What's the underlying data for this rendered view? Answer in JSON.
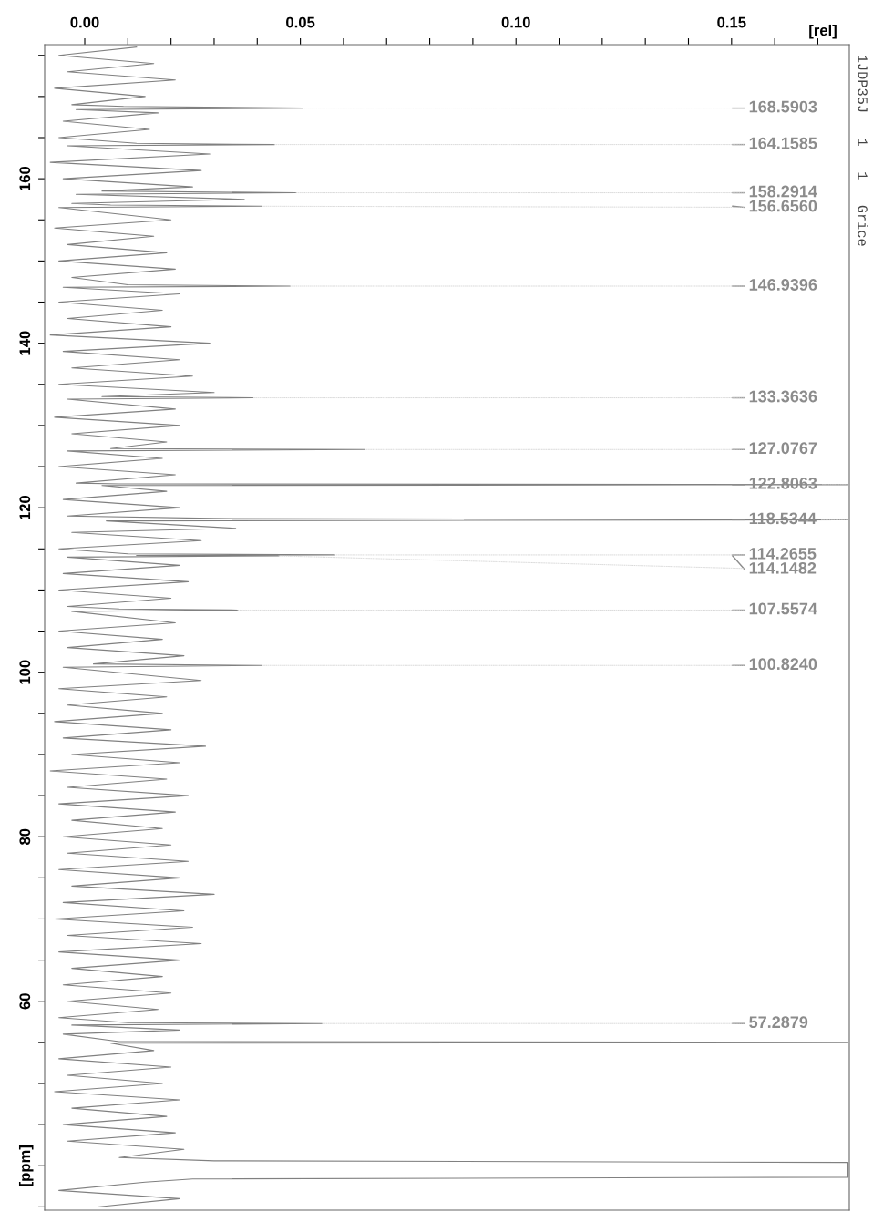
{
  "chart_data": {
    "type": "line",
    "xlabel": "[rel]",
    "xlim": [
      -0.0093,
      0.1773
    ],
    "xticks": [
      {
        "value": 0,
        "label": "0.00"
      },
      {
        "value": 0.01,
        "label": null
      },
      {
        "value": 0.02,
        "label": null
      },
      {
        "value": 0.03,
        "label": null
      },
      {
        "value": 0.04,
        "label": null
      },
      {
        "value": 0.05,
        "label": "0.05"
      },
      {
        "value": 0.06,
        "label": null
      },
      {
        "value": 0.07,
        "label": null
      },
      {
        "value": 0.08,
        "label": null
      },
      {
        "value": 0.09,
        "label": null
      },
      {
        "value": 0.1,
        "label": "0.10"
      },
      {
        "value": 0.11,
        "label": null
      },
      {
        "value": 0.12,
        "label": null
      },
      {
        "value": 0.13,
        "label": null
      },
      {
        "value": 0.14,
        "label": null
      },
      {
        "value": 0.15,
        "label": "0.15"
      },
      {
        "value": 0.16,
        "label": null
      },
      {
        "value": 0.17,
        "label": null
      }
    ],
    "ylim": [
      34.6,
      176.3
    ],
    "yticks": [
      {
        "value": 175,
        "label": null
      },
      {
        "value": 170,
        "label": null
      },
      {
        "value": 165,
        "label": null
      },
      160,
      {
        "value": 155,
        "label": null
      },
      {
        "value": 150,
        "label": null
      },
      {
        "value": 145,
        "label": null
      },
      140,
      {
        "value": 135,
        "label": null
      },
      {
        "value": 130,
        "label": null
      },
      {
        "value": 125,
        "label": null
      },
      120,
      {
        "value": 115,
        "label": null
      },
      {
        "value": 110,
        "label": null
      },
      {
        "value": 105,
        "label": null
      },
      100,
      {
        "value": 95,
        "label": null
      },
      {
        "value": 90,
        "label": null
      },
      {
        "value": 85,
        "label": null
      },
      80,
      {
        "value": 75,
        "label": null
      },
      {
        "value": 70,
        "label": null
      },
      {
        "value": 65,
        "label": null
      },
      60,
      {
        "value": 55,
        "label": null
      },
      {
        "value": 50,
        "label": null
      },
      {
        "value": 45,
        "label": null
      },
      {
        "value": 40,
        "label": "[ppm]"
      },
      {
        "value": 35,
        "label": null
      }
    ],
    "grid": false,
    "series": [
      {
        "color": "#808080",
        "x": [
          0.012,
          -0.006,
          0.016,
          -0.004,
          0.021,
          -0.007,
          0.014,
          -0.003,
          0.009,
          0.0507,
          -0.002,
          0.017,
          -0.005,
          0.015,
          -0.006,
          0.012,
          0.044,
          -0.004,
          0.029,
          -0.008,
          0.027,
          -0.005,
          0.025,
          0.004,
          0.049,
          -0.002,
          0.037,
          -0.003,
          0.006,
          0.041,
          -0.006,
          0.02,
          -0.007,
          0.016,
          -0.004,
          0.019,
          -0.006,
          0.021,
          -0.003,
          0.01,
          0.0476,
          -0.005,
          0.022,
          -0.006,
          0.018,
          -0.004,
          0.02,
          -0.008,
          0.029,
          -0.005,
          0.022,
          -0.003,
          0.025,
          -0.006,
          0.03,
          0.004,
          0.039,
          -0.004,
          0.021,
          -0.007,
          0.022,
          -0.003,
          0.019,
          0.006,
          0.065,
          -0.004,
          0.018,
          -0.006,
          0.021,
          -0.002,
          0.008,
          0.177,
          0.004,
          0.019,
          -0.005,
          0.022,
          -0.004,
          0.03,
          0.177,
          0.005,
          0.035,
          -0.003,
          0.027,
          -0.006,
          0.01,
          0.058,
          0.012,
          0.045,
          -0.004,
          0.022,
          -0.005,
          0.024,
          -0.006,
          0.02,
          -0.004,
          0.008,
          0.0355,
          -0.003,
          0.021,
          -0.006,
          0.018,
          -0.004,
          0.023,
          0.002,
          0.041,
          -0.005,
          0.027,
          -0.006,
          0.019,
          -0.004,
          0.018,
          -0.007,
          0.02,
          -0.005,
          0.028,
          -0.003,
          0.022,
          -0.008,
          0.019,
          -0.004,
          0.024,
          -0.006,
          0.021,
          -0.003,
          0.018,
          -0.005,
          0.02,
          -0.004,
          0.024,
          -0.006,
          0.022,
          -0.003,
          0.03,
          -0.005,
          0.023,
          -0.007,
          0.025,
          -0.004,
          0.027,
          -0.006,
          0.022,
          -0.003,
          0.018,
          -0.005,
          0.02,
          -0.004,
          0.017,
          -0.006,
          0.01,
          0.055,
          -0.003,
          0.022,
          -0.005,
          0.008,
          0.177,
          0.006,
          0.016,
          -0.006,
          0.02,
          -0.004,
          0.018,
          -0.007,
          0.022,
          -0.003,
          0.019,
          -0.005,
          0.021,
          -0.004,
          0.023,
          0.008,
          0.03,
          0.177,
          0.177,
          0.177,
          0.177,
          0.177,
          0.025,
          0.014,
          -0.006,
          0.022,
          0.003
        ],
        "values": [
          176,
          175,
          174,
          173,
          172,
          171,
          170,
          169,
          168.8,
          168.5903,
          168.4,
          168,
          167,
          166,
          165,
          164.3,
          164.1585,
          164.0,
          163,
          162,
          161,
          160,
          159,
          158.5,
          158.2914,
          158.1,
          157.5,
          157,
          156.8,
          156.656,
          156.5,
          155,
          154,
          153,
          152,
          151,
          150,
          149,
          148,
          147.1,
          146.9396,
          146.8,
          146,
          145,
          144,
          143,
          142,
          141,
          140,
          139,
          138,
          137,
          136,
          135,
          134,
          133.5,
          133.3636,
          133.2,
          132,
          131,
          130,
          129,
          128,
          127.2,
          127.0767,
          126.9,
          126,
          125,
          124,
          123,
          122.9,
          122.8063,
          122.7,
          122,
          121,
          120,
          119,
          118.7,
          118.5344,
          118.4,
          117.5,
          117,
          116,
          115,
          114.4,
          114.2655,
          114.2,
          114.1482,
          114.0,
          113,
          112,
          111,
          110,
          109,
          108,
          107.7,
          107.5574,
          107.4,
          106,
          105,
          104,
          103,
          102,
          101,
          100.824,
          100.6,
          99,
          98,
          97,
          96,
          95,
          94,
          93,
          92,
          91,
          90,
          89,
          88,
          87,
          86,
          85,
          84,
          83,
          82,
          81,
          80,
          79,
          78,
          77,
          76,
          75,
          74,
          73,
          72,
          71,
          70,
          69,
          68,
          67,
          66,
          65,
          64,
          63,
          62,
          61,
          60,
          59,
          58,
          57.4,
          57.2879,
          57.1,
          56.5,
          56,
          55.1,
          55.0,
          54.9,
          54,
          53,
          52,
          51,
          50,
          49,
          48,
          47,
          46,
          45,
          44,
          43,
          42,
          41,
          40.6,
          40.4,
          40.0,
          39.5,
          39.0,
          38.6,
          38.4,
          38,
          37,
          36,
          35
        ]
      }
    ],
    "annotations": [
      {
        "text": "168.5903",
        "x": 0.0507,
        "y": 168.5903
      },
      {
        "text": "164.1585",
        "x": 0.044,
        "y": 164.1585
      },
      {
        "text": "158.2914",
        "x": 0.049,
        "y": 158.2914
      },
      {
        "text": "156.6560",
        "x": 0.041,
        "y": 156.656
      },
      {
        "text": "146.9396",
        "x": 0.0476,
        "y": 146.9396
      },
      {
        "text": "133.3636",
        "x": 0.039,
        "y": 133.3636
      },
      {
        "text": "127.0767",
        "x": 0.065,
        "y": 127.0767
      },
      {
        "text": "122.8063",
        "x": 0.177,
        "y": 122.8063
      },
      {
        "text": "118.5344",
        "x": 0.177,
        "y": 118.5344
      },
      {
        "text": "114.2655",
        "x": 0.058,
        "y": 114.2655
      },
      {
        "text": "114.1482",
        "x": 0.045,
        "y": 114.1482
      },
      {
        "text": "107.5574",
        "x": 0.0355,
        "y": 107.5574
      },
      {
        "text": "100.8240",
        "x": 0.041,
        "y": 100.824
      },
      {
        "text": "57.2879",
        "x": 0.055,
        "y": 57.2879
      },
      "1JDP35J   1   1   Grice"
    ]
  }
}
